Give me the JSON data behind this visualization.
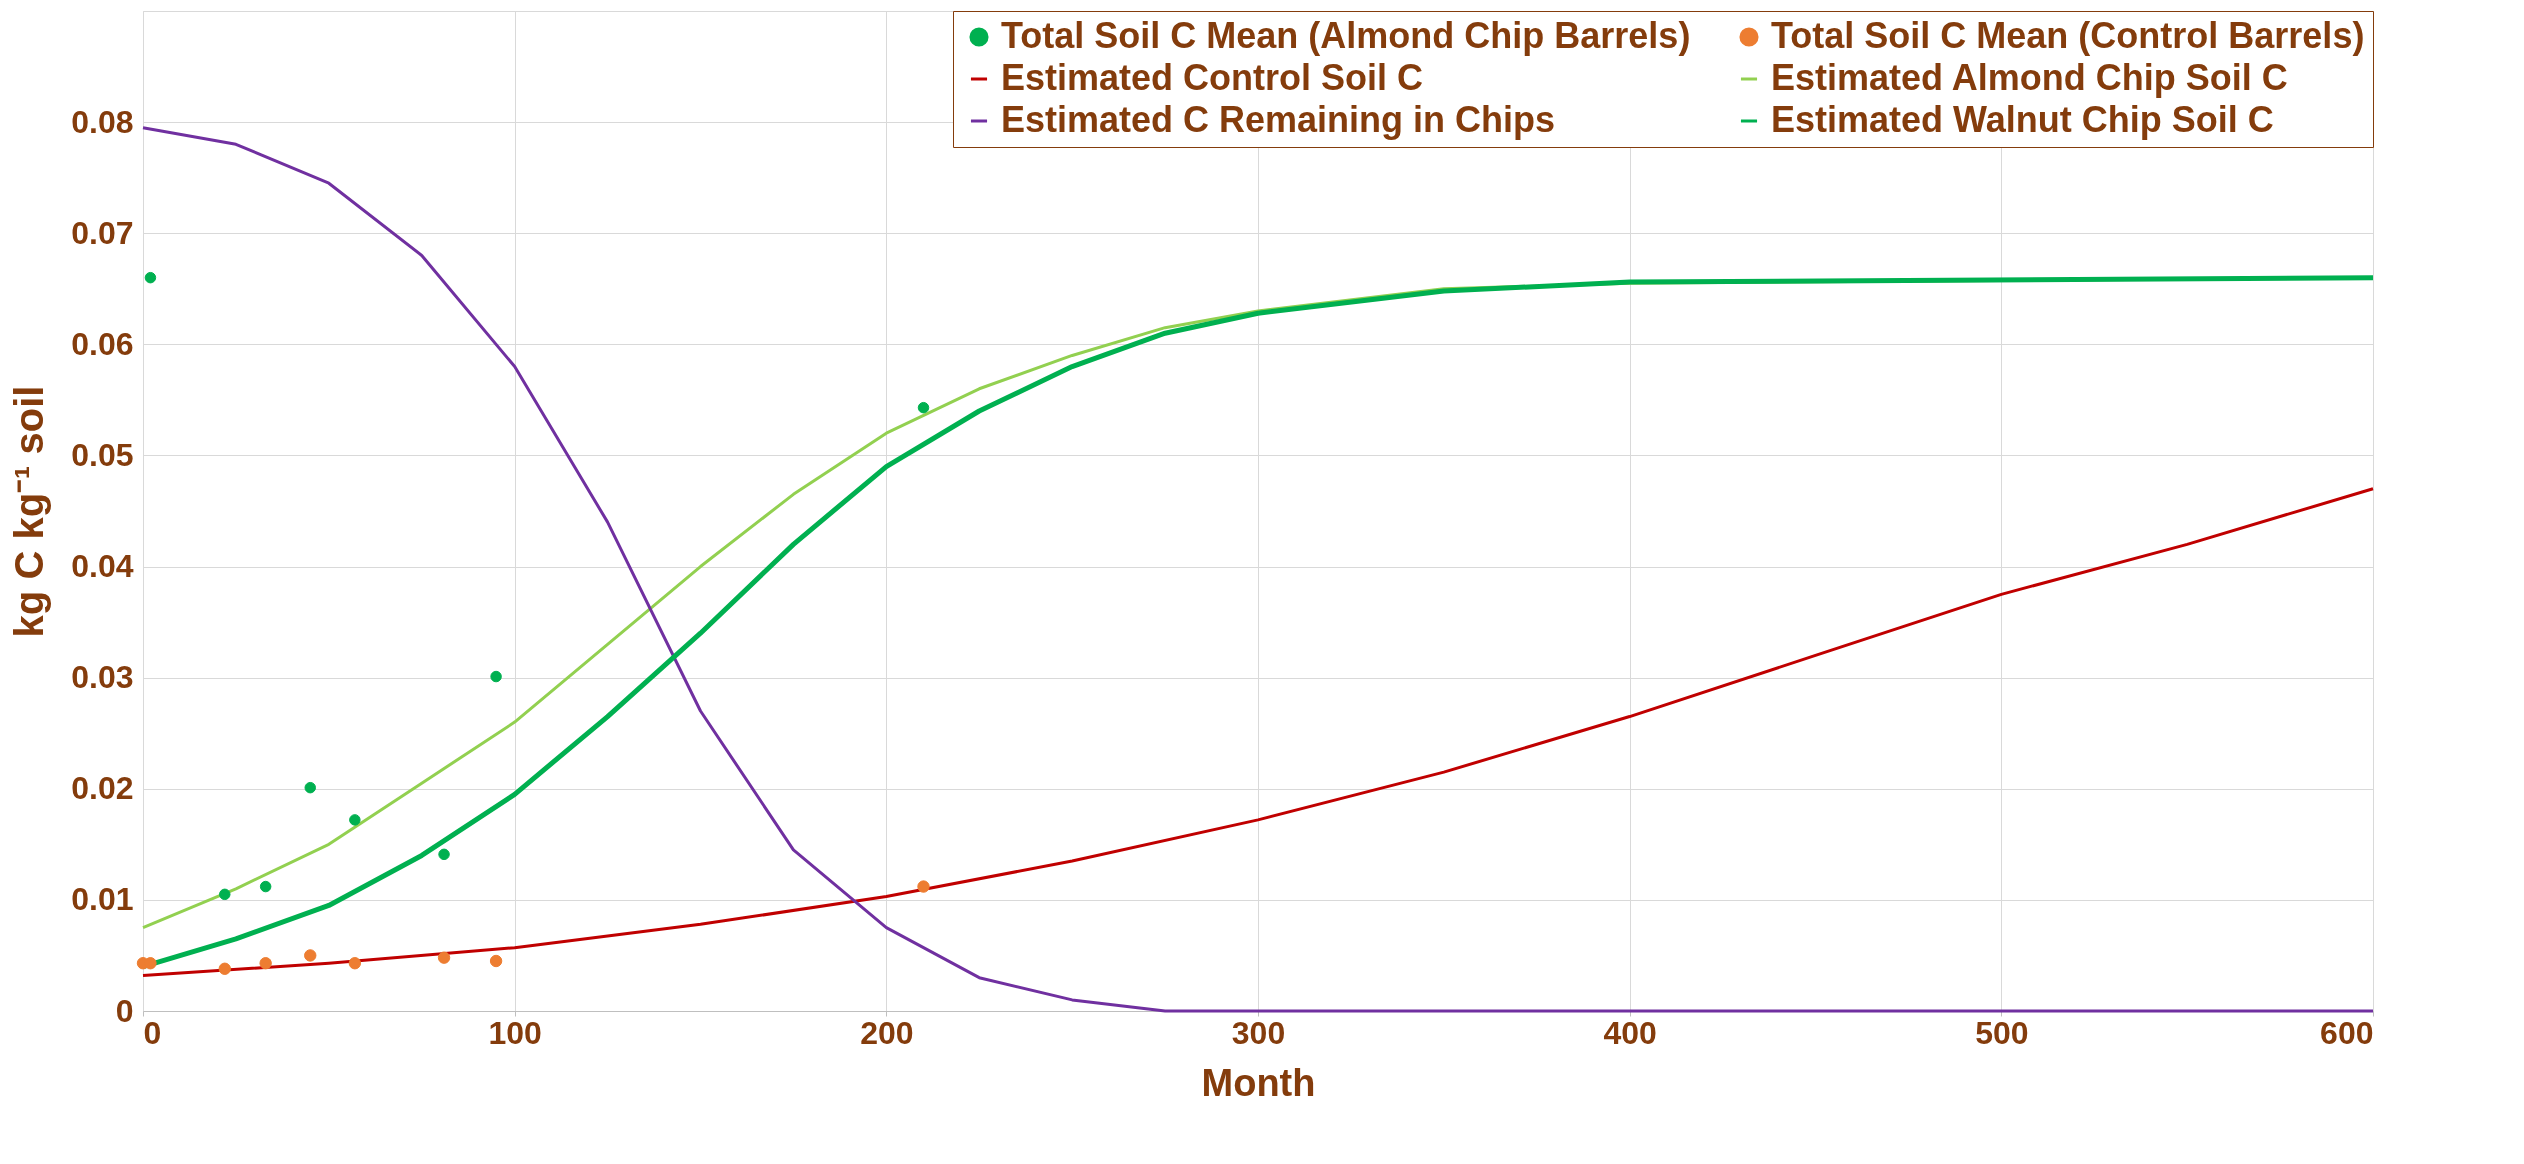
{
  "chart_data": {
    "type": "line",
    "xlabel": "Month",
    "ylabel": "kg C kg⁻¹ soil",
    "xlim": [
      0,
      600
    ],
    "xticks": [
      0,
      100,
      200,
      300,
      400,
      500,
      600
    ],
    "ylim": [
      0,
      0.09
    ],
    "yticks": [
      0,
      0.01,
      0.02,
      0.03,
      0.04,
      0.05,
      0.06,
      0.07,
      0.08,
      {
        "value": 0.09,
        "label": null
      }
    ],
    "grid": true,
    "legend": "top right",
    "series": [
      {
        "name": "Total Soil C Mean (Almond Chip Barrels)",
        "type": "scatter",
        "color": "#00b050",
        "x": [
          2,
          22,
          33,
          45,
          57,
          81,
          95,
          210
        ],
        "values": [
          0.066,
          0.0105,
          0.0112,
          0.0201,
          0.0172,
          0.0141,
          0.0301,
          0.0543
        ]
      },
      {
        "name": "Total Soil C Mean (Control Barrels)",
        "type": "scatter",
        "color": "#ed7d31",
        "x": [
          0,
          2,
          22,
          33,
          45,
          57,
          81,
          95,
          210
        ],
        "values": [
          0.0043,
          0.0043,
          0.0038,
          0.0043,
          0.005,
          0.0043,
          0.0048,
          0.0045,
          0.0112
        ]
      },
      {
        "name": "Estimated Control Soil C",
        "color": "#c00000",
        "x": [
          0,
          50,
          100,
          150,
          200,
          250,
          300,
          350,
          400,
          450,
          500,
          550,
          600
        ],
        "values": [
          0.0032,
          0.0043,
          0.0057,
          0.0078,
          0.0103,
          0.0135,
          0.0172,
          0.0215,
          0.0265,
          0.032,
          0.0375,
          0.042,
          0.047
        ]
      },
      {
        "name": "Estimated Almond Chip Soil C",
        "color": "#92d050",
        "x": [
          0,
          25,
          50,
          75,
          100,
          125,
          150,
          175,
          200,
          225,
          250,
          275,
          300,
          350,
          400,
          600
        ],
        "values": [
          0.0075,
          0.011,
          0.015,
          0.0205,
          0.026,
          0.033,
          0.04,
          0.0465,
          0.052,
          0.056,
          0.059,
          0.0615,
          0.063,
          0.065,
          0.0655,
          0.066
        ]
      },
      {
        "name": "Estimated C Remaining in Chips",
        "color": "#7030a0",
        "x": [
          0,
          25,
          50,
          75,
          100,
          125,
          150,
          175,
          200,
          225,
          250,
          275,
          600
        ],
        "values": [
          0.0795,
          0.078,
          0.0745,
          0.068,
          0.058,
          0.044,
          0.027,
          0.0145,
          0.0075,
          0.003,
          0.001,
          0,
          0
        ]
      },
      {
        "name": "Estimated Walnut Chip Soil C",
        "color": "#00b050",
        "x": [
          0,
          25,
          50,
          75,
          100,
          125,
          150,
          175,
          200,
          225,
          250,
          275,
          300,
          350,
          400,
          600
        ],
        "values": [
          0.004,
          0.0065,
          0.0095,
          0.014,
          0.0195,
          0.0265,
          0.034,
          0.042,
          0.049,
          0.054,
          0.058,
          0.061,
          0.0628,
          0.0648,
          0.0656,
          0.066
        ]
      }
    ]
  }
}
